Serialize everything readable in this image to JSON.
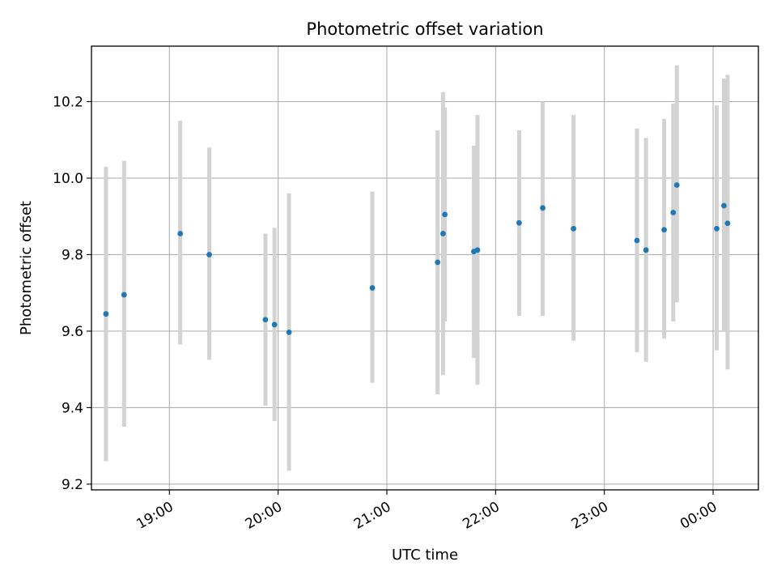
{
  "chart_data": {
    "type": "scatter",
    "title": "Photometric offset variation",
    "xlabel": "UTC time",
    "ylabel": "Photometric offset",
    "x_axis_kind": "time",
    "xlim": [
      "18:17",
      "00:25"
    ],
    "ylim": [
      9.185,
      10.345
    ],
    "x_ticks": [
      "19:00",
      "20:00",
      "21:00",
      "22:00",
      "23:00",
      "00:00"
    ],
    "y_ticks": [
      9.2,
      9.4,
      9.6,
      9.8,
      10.0,
      10.2
    ],
    "grid": true,
    "marker_color": "#1f77b4",
    "errorbar_color": "#d3d3d3",
    "points": [
      {
        "t": "18:25",
        "y": 9.645,
        "ylow": 9.26,
        "yhigh": 10.03
      },
      {
        "t": "18:35",
        "y": 9.695,
        "ylow": 9.35,
        "yhigh": 10.045
      },
      {
        "t": "19:06",
        "y": 9.855,
        "ylow": 9.565,
        "yhigh": 10.15
      },
      {
        "t": "19:22",
        "y": 9.8,
        "ylow": 9.525,
        "yhigh": 10.08
      },
      {
        "t": "19:53",
        "y": 9.63,
        "ylow": 9.405,
        "yhigh": 9.855
      },
      {
        "t": "19:58",
        "y": 9.617,
        "ylow": 9.365,
        "yhigh": 9.87
      },
      {
        "t": "20:06",
        "y": 9.597,
        "ylow": 9.235,
        "yhigh": 9.96
      },
      {
        "t": "20:52",
        "y": 9.713,
        "ylow": 9.465,
        "yhigh": 9.965
      },
      {
        "t": "21:28",
        "y": 9.78,
        "ylow": 9.435,
        "yhigh": 10.125
      },
      {
        "t": "21:31",
        "y": 9.855,
        "ylow": 9.485,
        "yhigh": 10.225
      },
      {
        "t": "21:32",
        "y": 9.905,
        "ylow": 9.625,
        "yhigh": 10.185
      },
      {
        "t": "21:48",
        "y": 9.808,
        "ylow": 9.53,
        "yhigh": 10.085
      },
      {
        "t": "21:50",
        "y": 9.812,
        "ylow": 9.46,
        "yhigh": 10.165
      },
      {
        "t": "22:13",
        "y": 9.883,
        "ylow": 9.64,
        "yhigh": 10.125
      },
      {
        "t": "22:26",
        "y": 9.922,
        "ylow": 9.64,
        "yhigh": 10.2
      },
      {
        "t": "22:43",
        "y": 9.868,
        "ylow": 9.575,
        "yhigh": 10.165
      },
      {
        "t": "23:18",
        "y": 9.837,
        "ylow": 9.545,
        "yhigh": 10.13
      },
      {
        "t": "23:23",
        "y": 9.812,
        "ylow": 9.52,
        "yhigh": 10.105
      },
      {
        "t": "23:33",
        "y": 9.865,
        "ylow": 9.58,
        "yhigh": 10.155
      },
      {
        "t": "23:38",
        "y": 9.91,
        "ylow": 9.625,
        "yhigh": 10.195
      },
      {
        "t": "23:40",
        "y": 9.982,
        "ylow": 9.675,
        "yhigh": 10.295
      },
      {
        "t": "00:02",
        "y": 9.868,
        "ylow": 9.55,
        "yhigh": 10.19
      },
      {
        "t": "00:06",
        "y": 9.928,
        "ylow": 9.6,
        "yhigh": 10.26
      },
      {
        "t": "00:08",
        "y": 9.882,
        "ylow": 9.5,
        "yhigh": 10.27
      }
    ]
  }
}
